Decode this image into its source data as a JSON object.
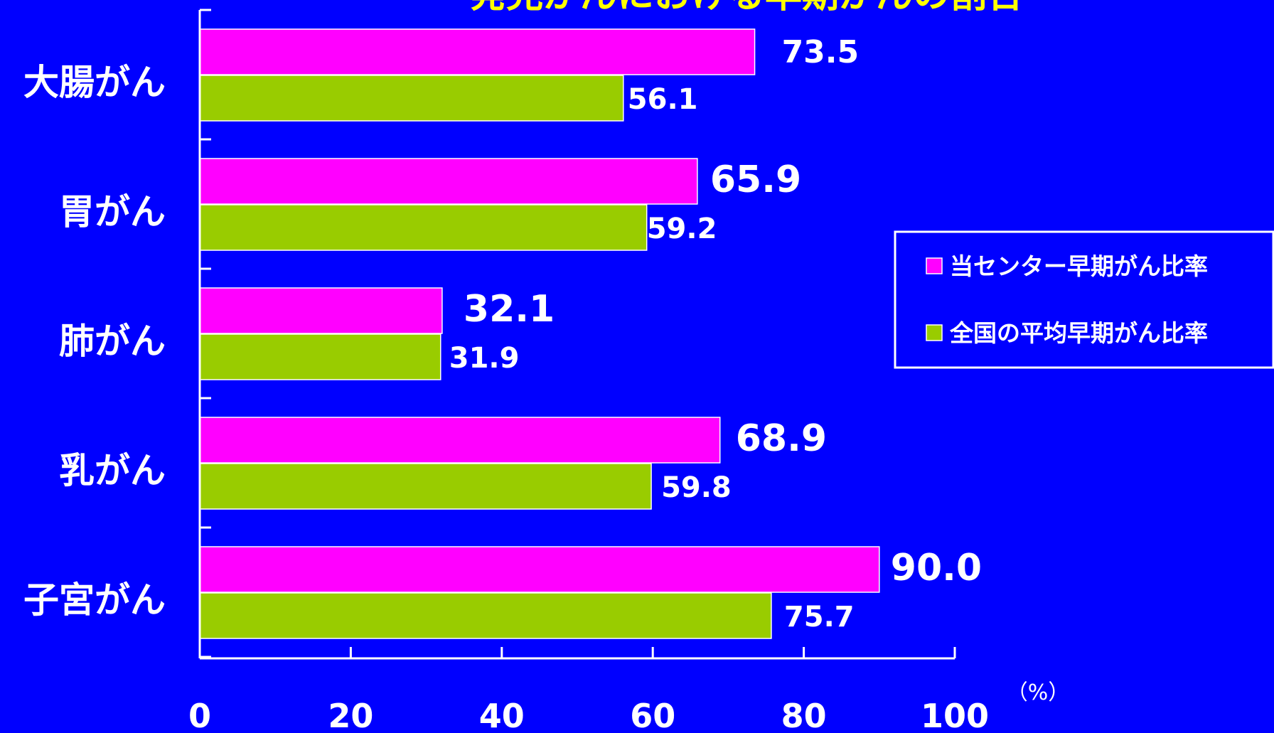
{
  "chart_data": {
    "type": "bar",
    "orientation": "horizontal",
    "title": "発見がんにおける早期がんの割合",
    "categories": [
      "大腸がん",
      "胃がん",
      "肺がん",
      "乳がん",
      "子宮がん"
    ],
    "series": [
      {
        "name": "当センター早期がん比率",
        "color": "#FF00FF",
        "values": [
          73.5,
          65.9,
          32.1,
          68.9,
          90.0
        ],
        "labels": [
          "73.5",
          "65.9",
          "32.1",
          "68.9",
          "90.0"
        ]
      },
      {
        "name": "全国の平均早期がん比率",
        "color": "#99CC00",
        "values": [
          56.1,
          59.2,
          31.9,
          59.8,
          75.7
        ],
        "labels": [
          "56.1",
          "59.2",
          "31.9",
          "59.8",
          "75.7"
        ]
      }
    ],
    "xlim": [
      0,
      100
    ],
    "xticks": [
      "0",
      "20",
      "40",
      "60",
      "80",
      "100"
    ],
    "unit": "（%）",
    "grid": false,
    "legend_position": "right"
  }
}
